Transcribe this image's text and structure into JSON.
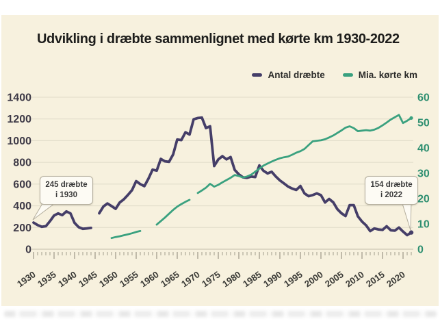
{
  "page": {
    "background": "#ffffff",
    "panel_background": "#f7f1de"
  },
  "annotations": [
    {
      "line1": "245 dræbte",
      "line2": "i 1930",
      "year": 1930,
      "value": 245
    },
    {
      "line1": "154 dræbte",
      "line2": "i 2022",
      "year": 2022,
      "value": 154
    }
  ],
  "chart_data": {
    "type": "line",
    "title": "Udvikling i dræbte sammenlignet med kørte km 1930-2022",
    "xlim": [
      1930,
      2022
    ],
    "grid": true,
    "legend_position": "top-right",
    "background": "#f7f1de",
    "grid_color": "#e0dbc8",
    "tick_color": "#a29d8c",
    "x_label_color": "#3a3a36",
    "x": [
      1930,
      1931,
      1932,
      1933,
      1934,
      1935,
      1936,
      1937,
      1938,
      1939,
      1940,
      1941,
      1942,
      1943,
      1944,
      1945,
      1946,
      1947,
      1948,
      1949,
      1950,
      1951,
      1952,
      1953,
      1954,
      1955,
      1956,
      1957,
      1958,
      1959,
      1960,
      1961,
      1962,
      1963,
      1964,
      1965,
      1966,
      1967,
      1968,
      1969,
      1970,
      1971,
      1972,
      1973,
      1974,
      1975,
      1976,
      1977,
      1978,
      1979,
      1980,
      1981,
      1982,
      1983,
      1984,
      1985,
      1986,
      1987,
      1988,
      1989,
      1990,
      1991,
      1992,
      1993,
      1994,
      1995,
      1996,
      1997,
      1998,
      1999,
      2000,
      2001,
      2002,
      2003,
      2004,
      2005,
      2006,
      2007,
      2008,
      2009,
      2010,
      2011,
      2012,
      2013,
      2014,
      2015,
      2016,
      2017,
      2018,
      2019,
      2020,
      2021,
      2022
    ],
    "x_axis": {
      "labels": [
        1930,
        1935,
        1940,
        1945,
        1950,
        1955,
        1960,
        1965,
        1970,
        1975,
        1980,
        1985,
        1990,
        1995,
        2000,
        2005,
        2010,
        2015,
        2020
      ],
      "minor_tick_every": 1,
      "label_rotation_deg": -35
    },
    "left_axis": {
      "range": [
        0,
        1400
      ],
      "ticks": [
        0,
        200,
        400,
        600,
        800,
        1000,
        1200,
        1400
      ],
      "color": "#3e3a47"
    },
    "right_axis": {
      "range": [
        0,
        60
      ],
      "ticks": [
        0,
        10,
        20,
        30,
        40,
        50,
        60
      ],
      "color": "#2e8f70"
    },
    "series": [
      {
        "name": "Antal dræbte",
        "axis": "left",
        "color": "#453e68",
        "values": [
          245,
          222,
          206,
          212,
          258,
          310,
          330,
          314,
          348,
          330,
          242,
          203,
          188,
          192,
          196,
          null,
          331,
          393,
          421,
          397,
          372,
          431,
          460,
          500,
          545,
          627,
          600,
          581,
          651,
          733,
          724,
          832,
          810,
          805,
          873,
          1010,
          1005,
          1077,
          1056,
          1197,
          1208,
          1213,
          1116,
          1132,
          766,
          827,
          857,
          828,
          849,
          730,
          690,
          662,
          658,
          669,
          665,
          772,
          723,
          698,
          713,
          670,
          634,
          606,
          577,
          559,
          546,
          582,
          514,
          489,
          499,
          514,
          498,
          431,
          463,
          432,
          369,
          331,
          306,
          406,
          406,
          303,
          255,
          220,
          167,
          191,
          182,
          178,
          211,
          175,
          171,
          199,
          163,
          130,
          154
        ]
      },
      {
        "name": "Mia. kørte km",
        "axis": "right",
        "color": "#3aa17f",
        "values": [
          null,
          null,
          null,
          null,
          null,
          null,
          null,
          null,
          null,
          null,
          null,
          null,
          null,
          null,
          null,
          null,
          null,
          null,
          null,
          4.4,
          4.8,
          5.1,
          5.5,
          5.9,
          6.3,
          6.8,
          7.2,
          null,
          null,
          null,
          9.7,
          11.1,
          12.5,
          14.0,
          15.5,
          16.8,
          17.8,
          18.7,
          19.5,
          null,
          22.2,
          23.2,
          24.3,
          25.8,
          24.7,
          25.4,
          26.4,
          27.3,
          28.2,
          29.3,
          28.9,
          28.3,
          28.7,
          29.4,
          30.6,
          31.8,
          33.0,
          33.8,
          34.6,
          35.3,
          35.9,
          36.3,
          36.6,
          37.3,
          38.1,
          38.7,
          39.6,
          41.1,
          42.6,
          42.8,
          43.0,
          43.4,
          44.1,
          44.9,
          45.9,
          46.9,
          48.0,
          48.5,
          47.8,
          46.6,
          46.8,
          47.0,
          46.8,
          47.2,
          47.9,
          48.9,
          50.0,
          51.2,
          52.1,
          53.0,
          49.8,
          50.7,
          51.8
        ]
      }
    ]
  }
}
